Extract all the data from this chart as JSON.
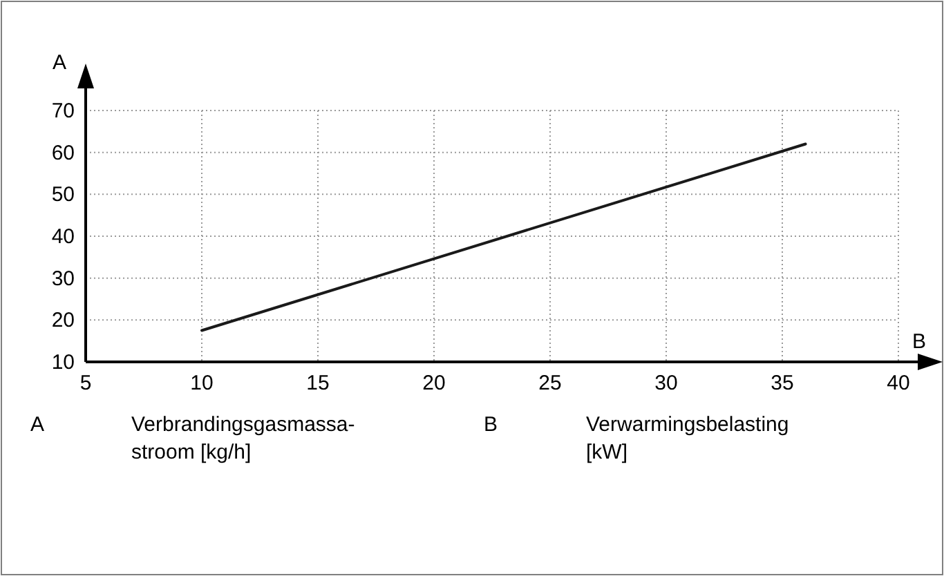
{
  "chart_data": {
    "type": "line",
    "xlabel": "B",
    "ylabel": "A",
    "x": [
      10,
      36
    ],
    "series": [
      {
        "color": "#1a1a1a",
        "values": [
          17.5,
          62
        ]
      }
    ],
    "xlim": [
      5,
      40
    ],
    "ylim": [
      10,
      70
    ],
    "xticks": [
      5,
      10,
      15,
      20,
      25,
      30,
      35,
      40
    ],
    "yticks": [
      10,
      20,
      30,
      40,
      50,
      60,
      70
    ],
    "grid": true,
    "marker": "none",
    "line_style": "solid",
    "annotations": [
      "A",
      "Verbrandingsgasmassa-\nstroom [kg/h]",
      "B",
      "Verwarmingsbelasting\n[kW]"
    ]
  }
}
